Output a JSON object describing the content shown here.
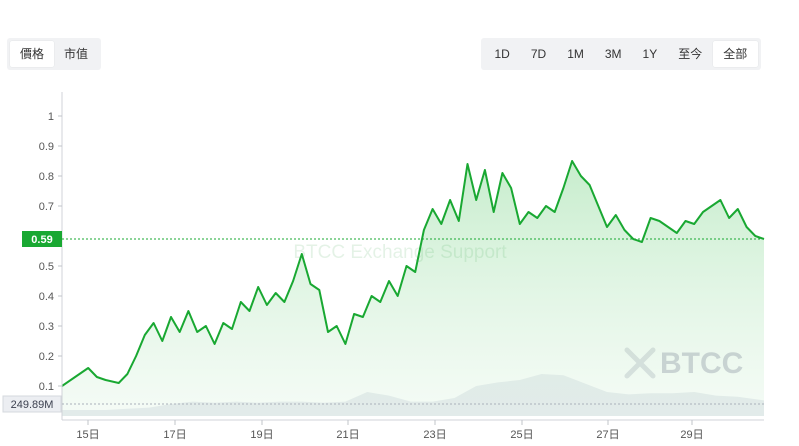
{
  "metric_tabs": [
    {
      "label": "價格",
      "active": true
    },
    {
      "label": "市值",
      "active": false
    }
  ],
  "range_tabs": [
    {
      "label": "1D",
      "active": false
    },
    {
      "label": "7D",
      "active": false
    },
    {
      "label": "1M",
      "active": false
    },
    {
      "label": "3M",
      "active": false
    },
    {
      "label": "1Y",
      "active": false
    },
    {
      "label": "至今",
      "active": false
    },
    {
      "label": "全部",
      "active": true
    }
  ],
  "watermark": {
    "text": "BTCC",
    "center_text": "BTCC Exchange Support"
  },
  "colors": {
    "line": "#19a832",
    "fill": "#dff5e2",
    "volume": "#c9cfdc",
    "price_tag": "#19a832",
    "volume_tag": "#3d4150"
  },
  "chart_data": {
    "type": "area",
    "title": "",
    "xlabel": "",
    "ylabel": "",
    "ylim": [
      0,
      1.05
    ],
    "y_ticks": [
      "0.1",
      "0.2",
      "0.3",
      "0.4",
      "0.5",
      "0.6",
      "0.7",
      "0.8",
      "0.9",
      "1"
    ],
    "x_ticks": [
      "15日",
      "17日",
      "19日",
      "21日",
      "23日",
      "25日",
      "27日",
      "29日"
    ],
    "xlim": [
      "14日 12:00",
      "30日 18:00"
    ],
    "current_price_label": "0.59",
    "current_price": 0.59,
    "volume_label": "249.89M",
    "price_series": {
      "name": "",
      "x": [
        14.5,
        14.8,
        15.1,
        15.3,
        15.5,
        15.8,
        16.0,
        16.2,
        16.4,
        16.6,
        16.8,
        17.0,
        17.2,
        17.4,
        17.6,
        17.8,
        18.0,
        18.2,
        18.4,
        18.6,
        18.8,
        19.0,
        19.2,
        19.4,
        19.6,
        19.8,
        20.0,
        20.2,
        20.4,
        20.6,
        20.8,
        21.0,
        21.2,
        21.4,
        21.6,
        21.8,
        22.0,
        22.2,
        22.4,
        22.6,
        22.8,
        23.0,
        23.2,
        23.4,
        23.6,
        23.8,
        24.0,
        24.2,
        24.4,
        24.6,
        24.8,
        25.0,
        25.2,
        25.4,
        25.6,
        25.8,
        26.0,
        26.2,
        26.4,
        26.6,
        26.8,
        27.0,
        27.2,
        27.4,
        27.6,
        27.8,
        28.0,
        28.2,
        28.4,
        28.6,
        28.8,
        29.0,
        29.2,
        29.4,
        29.6,
        29.8,
        30.0,
        30.2,
        30.4,
        30.6
      ],
      "y": [
        0.1,
        0.13,
        0.16,
        0.13,
        0.12,
        0.11,
        0.14,
        0.2,
        0.27,
        0.31,
        0.25,
        0.33,
        0.28,
        0.35,
        0.28,
        0.3,
        0.24,
        0.31,
        0.29,
        0.38,
        0.35,
        0.43,
        0.37,
        0.41,
        0.38,
        0.45,
        0.54,
        0.44,
        0.42,
        0.28,
        0.3,
        0.24,
        0.34,
        0.33,
        0.4,
        0.38,
        0.45,
        0.4,
        0.5,
        0.48,
        0.62,
        0.69,
        0.64,
        0.72,
        0.65,
        0.84,
        0.72,
        0.82,
        0.68,
        0.81,
        0.76,
        0.64,
        0.68,
        0.66,
        0.7,
        0.68,
        0.76,
        0.85,
        0.8,
        0.77,
        0.7,
        0.63,
        0.67,
        0.62,
        0.59,
        0.58,
        0.66,
        0.65,
        0.63,
        0.61,
        0.65,
        0.64,
        0.68,
        0.7,
        0.72,
        0.66,
        0.69,
        0.63,
        0.6,
        0.59
      ]
    },
    "volume_series": {
      "name": "",
      "x": [
        14.5,
        15.0,
        15.5,
        16.0,
        16.5,
        17.0,
        17.5,
        18.0,
        18.5,
        19.0,
        19.5,
        20.0,
        20.5,
        21.0,
        21.5,
        22.0,
        22.5,
        23.0,
        23.5,
        24.0,
        24.5,
        25.0,
        25.5,
        26.0,
        26.5,
        27.0,
        27.5,
        28.0,
        28.5,
        29.0,
        29.5,
        30.0,
        30.6
      ],
      "y": [
        0.05,
        0.05,
        0.05,
        0.06,
        0.07,
        0.1,
        0.12,
        0.11,
        0.12,
        0.11,
        0.12,
        0.12,
        0.11,
        0.12,
        0.2,
        0.17,
        0.12,
        0.12,
        0.15,
        0.25,
        0.28,
        0.3,
        0.35,
        0.34,
        0.27,
        0.2,
        0.18,
        0.19,
        0.19,
        0.2,
        0.17,
        0.16,
        0.13
      ]
    }
  }
}
